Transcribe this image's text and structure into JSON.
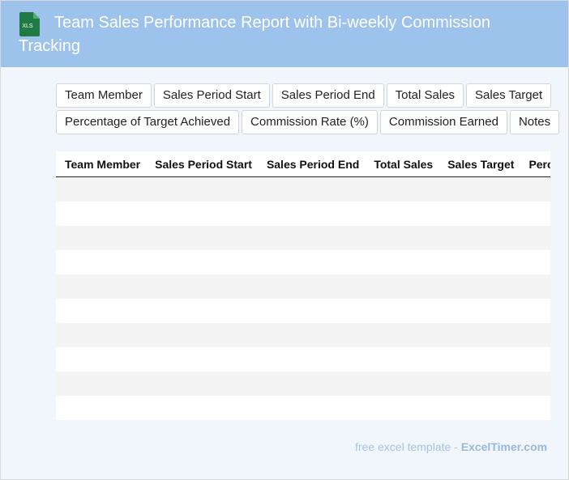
{
  "header": {
    "icon": "XLS",
    "title": "Team Sales Performance Report with Bi-weekly Commission Tracking"
  },
  "columns": [
    "Team Member",
    "Sales Period Start",
    "Sales Period End",
    "Total Sales",
    "Sales Target",
    "Percentage of Target Achieved",
    "Commission Rate (%)",
    "Commission Earned",
    "Notes"
  ],
  "footer": {
    "text": "free excel template - ",
    "link": "ExcelTimer.com"
  }
}
